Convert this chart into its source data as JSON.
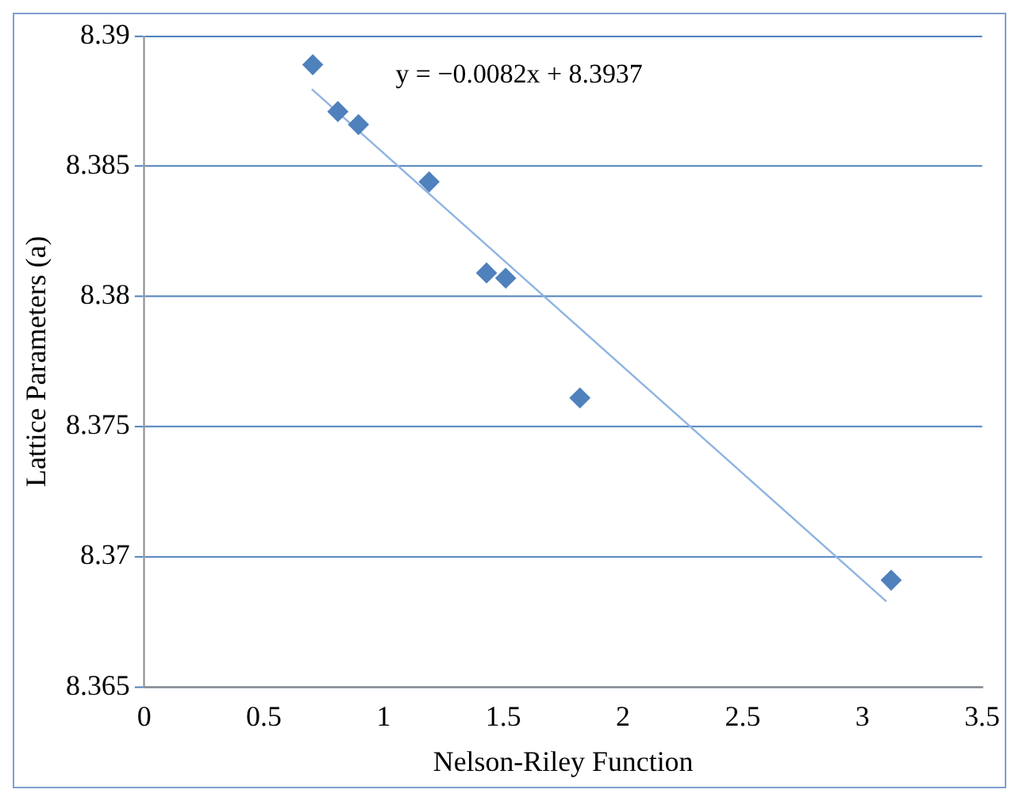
{
  "chart_data": {
    "type": "scatter",
    "xlabel": "Nelson-Riley Function",
    "ylabel": "Lattice Parameters (a)",
    "annotations": [
      "y = −0.0082x + 8.3937"
    ],
    "series": [
      {
        "color": "#4f81bd",
        "marker": "diamond",
        "x": [
          0.704,
          0.809,
          0.895,
          1.19,
          1.43,
          1.51,
          1.82,
          3.12
        ],
        "values": [
          8.3889,
          8.3871,
          8.3866,
          8.3844,
          8.3809,
          8.3807,
          8.3761,
          8.3691
        ]
      },
      {
        "type": "line",
        "color": "#8eb4e3",
        "marker": "none",
        "x": [
          0.7,
          3.1
        ],
        "values": [
          8.38796,
          8.36828
        ]
      }
    ],
    "xlim": [
      0,
      3.5
    ],
    "xticks": [
      0,
      0.5,
      1,
      1.5,
      2,
      2.5,
      3,
      3.5
    ],
    "ylim": [
      8.365,
      8.39
    ],
    "yticks": [
      8.365,
      8.37,
      8.375,
      8.38,
      8.385,
      8.39
    ],
    "grid": "y",
    "legend": false
  }
}
